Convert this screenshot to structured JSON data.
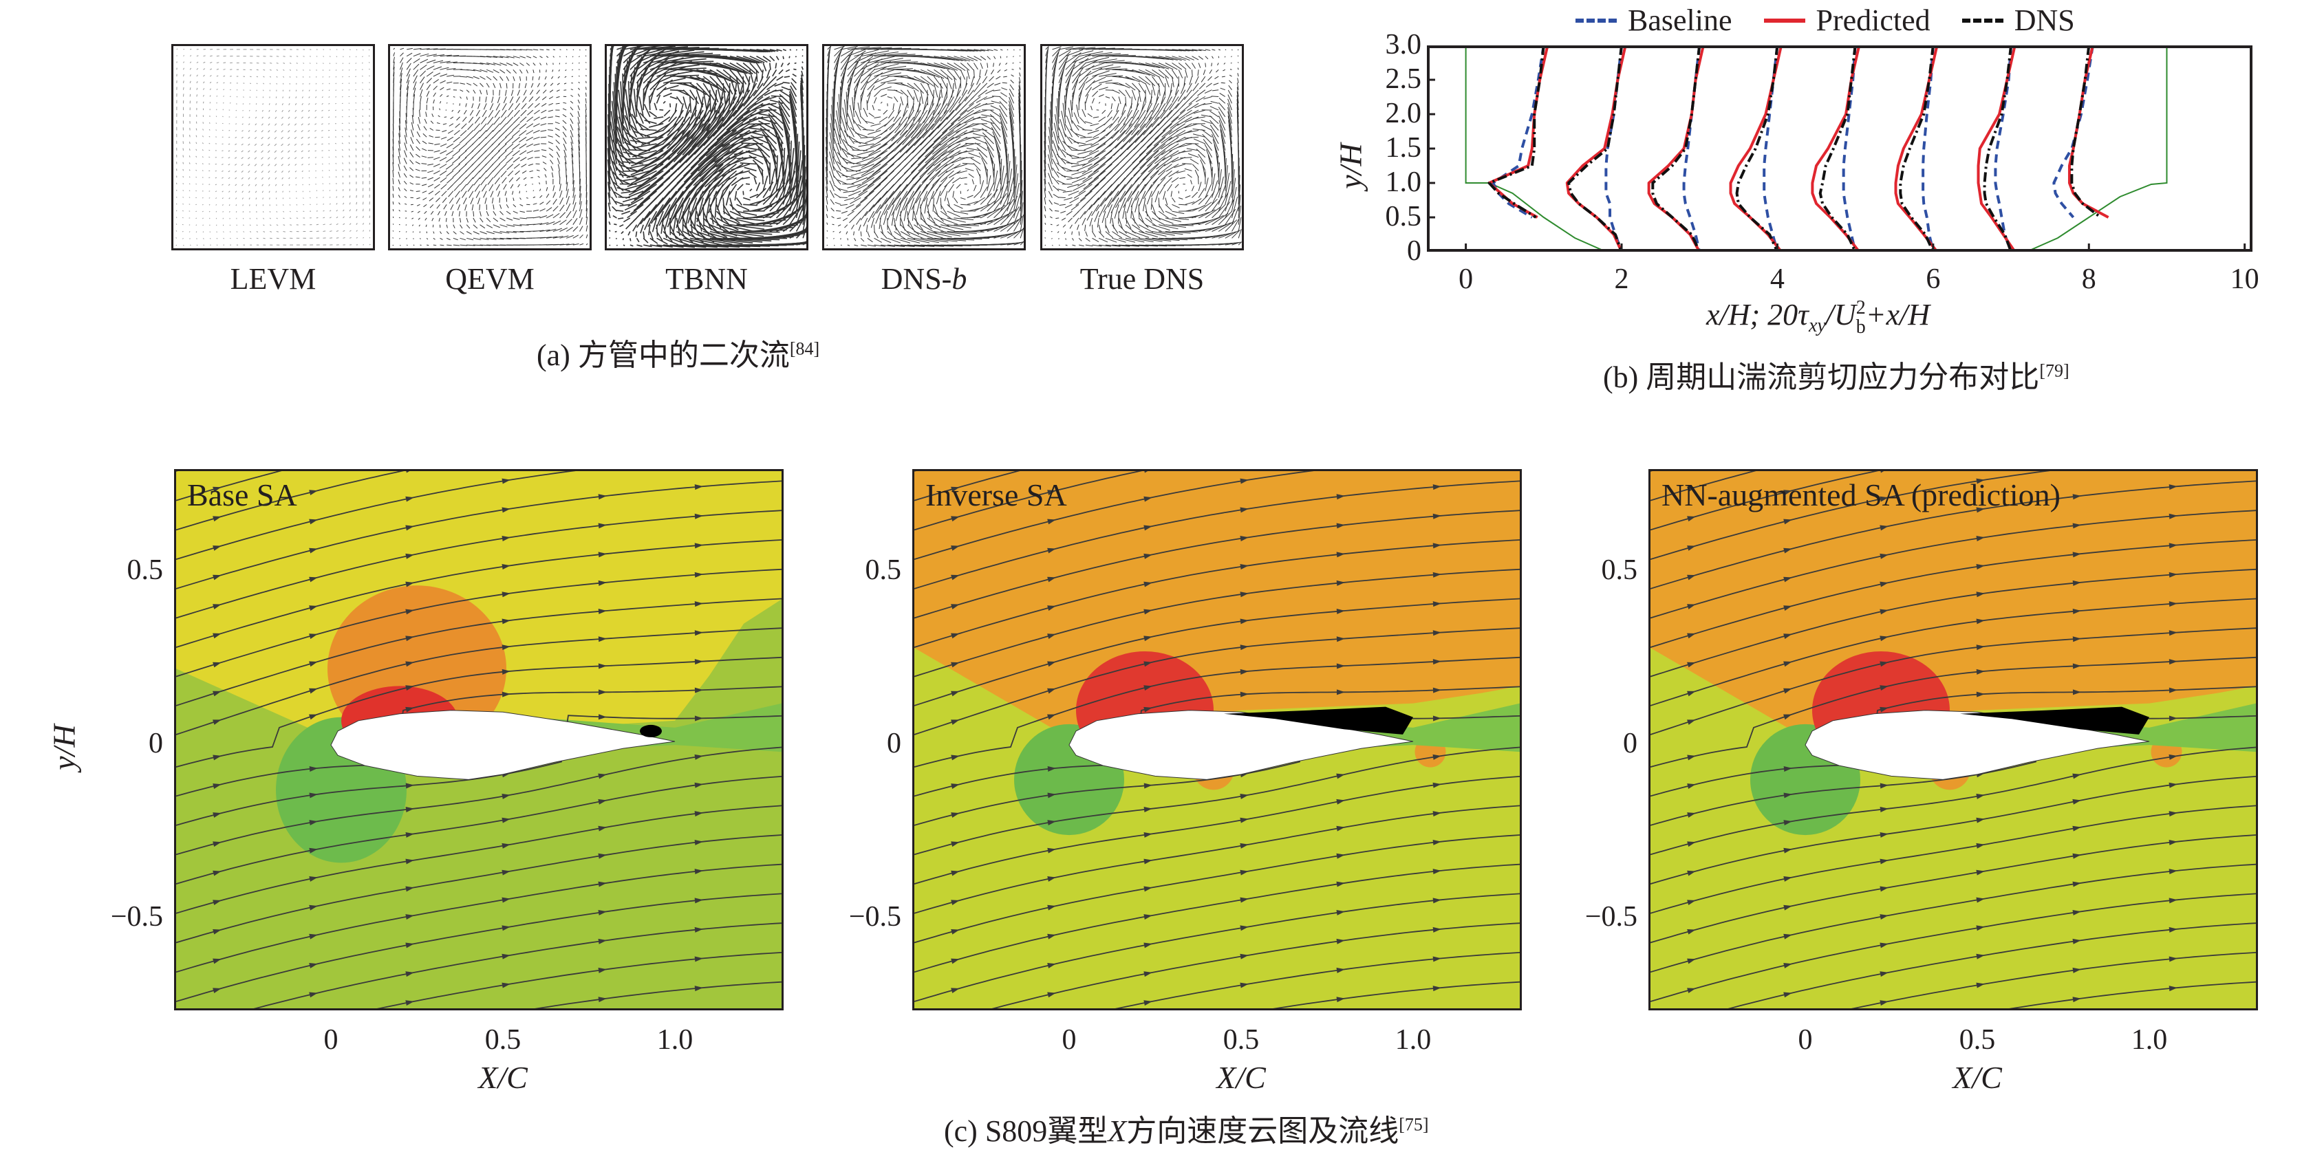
{
  "panel_a": {
    "labels": [
      "LEVM",
      "QEVM",
      "TBNN",
      "DNS-",
      "True DNS"
    ],
    "label_italic_suffix": {
      "3": "b"
    },
    "caption": "(a) 方管中的二次流",
    "caption_ref": "[84]"
  },
  "chart_data": {
    "type": "line",
    "title": "",
    "legend": {
      "placement": "top",
      "entries": [
        "Baseline",
        "Predicted",
        "DNS"
      ]
    },
    "xlabel_parts": {
      "a": "x/H; 20τ",
      "sub1": "xy",
      "b": "/U",
      "sub2": "b",
      "sup2": "2",
      "c": "+x/H"
    },
    "ylabel": "y/H",
    "xlim": [
      -0.5,
      10.1
    ],
    "ylim": [
      0,
      3
    ],
    "xticks": [
      "0",
      "2",
      "4",
      "6",
      "8",
      "10"
    ],
    "yticks": [
      "0",
      "0.5",
      "1.0",
      "1.5",
      "2.0",
      "2.5",
      "3.0"
    ],
    "colors": {
      "Baseline": "#2e4fa3",
      "Predicted": "#e0262f",
      "DNS": "#111111",
      "geometry": "#2e8b2e"
    },
    "geometry": {
      "hill": [
        [
          0,
          3
        ],
        [
          0,
          1
        ],
        [
          0.3,
          1
        ],
        [
          0.6,
          0.85
        ],
        [
          1.0,
          0.5
        ],
        [
          1.4,
          0.2
        ],
        [
          1.8,
          0
        ],
        [
          7.2,
          0
        ],
        [
          7.6,
          0.2
        ],
        [
          8.0,
          0.5
        ],
        [
          8.4,
          0.8
        ],
        [
          8.8,
          0.98
        ],
        [
          9,
          1
        ],
        [
          9,
          3
        ]
      ]
    },
    "y_samples": [
      3.0,
      2.5,
      2.0,
      1.5,
      1.25,
      1.0,
      0.85,
      0.7,
      0.5,
      0.25,
      0.0
    ],
    "series": [
      {
        "name": "Baseline",
        "profiles": [
          [
            1.0,
            0.93,
            0.85,
            0.72,
            0.68,
            0.35,
            0.42,
            0.55,
            0.85,
            null,
            null
          ],
          [
            2.0,
            1.95,
            1.9,
            1.82,
            1.8,
            1.8,
            1.8,
            1.85,
            1.85,
            1.92,
            2.0
          ],
          [
            3.0,
            2.95,
            2.9,
            2.85,
            2.82,
            2.8,
            2.8,
            2.82,
            2.88,
            2.95,
            3.0
          ],
          [
            4.0,
            3.95,
            3.9,
            3.85,
            3.83,
            3.83,
            3.83,
            3.85,
            3.88,
            3.94,
            4.0
          ],
          [
            5.0,
            4.97,
            4.92,
            4.87,
            4.85,
            4.85,
            4.85,
            4.87,
            4.9,
            4.95,
            5.0
          ],
          [
            6.0,
            5.97,
            5.92,
            5.88,
            5.87,
            5.87,
            5.87,
            5.88,
            5.92,
            5.95,
            6.0
          ],
          [
            7.0,
            6.97,
            6.9,
            6.82,
            6.8,
            6.8,
            6.82,
            6.85,
            6.88,
            6.92,
            7.0
          ],
          [
            8.05,
            7.98,
            7.9,
            7.78,
            7.65,
            7.55,
            7.57,
            7.65,
            7.8,
            null,
            null
          ]
        ]
      },
      {
        "name": "Predicted",
        "profiles": [
          [
            1.05,
            0.95,
            0.88,
            0.85,
            0.8,
            0.3,
            0.45,
            0.6,
            0.92,
            null,
            null
          ],
          [
            2.05,
            1.95,
            1.88,
            1.78,
            1.5,
            1.3,
            1.32,
            1.45,
            1.68,
            1.9,
            2.0
          ],
          [
            3.05,
            2.95,
            2.9,
            2.8,
            2.6,
            2.35,
            2.35,
            2.42,
            2.65,
            2.88,
            3.0
          ],
          [
            4.05,
            3.95,
            3.85,
            3.65,
            3.5,
            3.4,
            3.4,
            3.45,
            3.65,
            3.88,
            4.05
          ],
          [
            5.05,
            4.95,
            4.88,
            4.65,
            4.5,
            4.45,
            4.45,
            4.5,
            4.68,
            4.88,
            5.05
          ],
          [
            6.05,
            5.95,
            5.85,
            5.62,
            5.55,
            5.52,
            5.52,
            5.55,
            5.7,
            5.88,
            6.05
          ],
          [
            7.05,
            6.95,
            6.85,
            6.6,
            6.58,
            6.58,
            6.6,
            6.62,
            6.75,
            6.9,
            7.05
          ],
          [
            8.05,
            7.95,
            7.88,
            7.8,
            7.75,
            7.75,
            7.8,
            7.92,
            8.25,
            null,
            null
          ]
        ]
      },
      {
        "name": "DNS",
        "profiles": [
          [
            1.0,
            0.95,
            0.88,
            0.88,
            0.85,
            0.3,
            0.42,
            0.62,
            0.9,
            null,
            null
          ],
          [
            2.0,
            1.95,
            1.9,
            1.82,
            1.55,
            1.32,
            1.35,
            1.45,
            1.68,
            1.92,
            2.0
          ],
          [
            3.0,
            2.95,
            2.9,
            2.82,
            2.65,
            2.4,
            2.4,
            2.45,
            2.65,
            2.9,
            3.0
          ],
          [
            4.0,
            3.95,
            3.88,
            3.72,
            3.6,
            3.5,
            3.48,
            3.5,
            3.65,
            3.9,
            4.0
          ],
          [
            5.0,
            4.95,
            4.9,
            4.72,
            4.62,
            4.58,
            4.55,
            4.58,
            4.7,
            4.9,
            5.0
          ],
          [
            6.0,
            5.95,
            5.88,
            5.7,
            5.62,
            5.58,
            5.58,
            5.6,
            5.72,
            5.9,
            6.0
          ],
          [
            7.0,
            6.95,
            6.88,
            6.72,
            6.68,
            6.66,
            6.66,
            6.68,
            6.78,
            6.92,
            7.0
          ],
          [
            8.0,
            7.95,
            7.88,
            7.8,
            7.78,
            7.78,
            7.82,
            7.92,
            8.15,
            null,
            null
          ]
        ]
      }
    ],
    "grid": false,
    "caption": "(b) 周期山湍流剪切应力分布对比",
    "caption_ref": "[79]"
  },
  "panel_c": {
    "panels": [
      {
        "title": "Base SA",
        "colors": {
          "upper": "#dfd62e",
          "lower": "#a2c63c",
          "orange": "#e8902c",
          "red": "#e0332c",
          "green": "#6dbb4c",
          "wake": "#7fc24a"
        }
      },
      {
        "title": "Inverse SA",
        "colors": {
          "upper": "#e9a12c",
          "lower": "#c4d333",
          "orange": "#e89a2c",
          "red": "#e0392f",
          "green": "#6cba4b",
          "wake": "#7ec34a"
        }
      },
      {
        "title": "NN-augmented SA (prediction)",
        "colors": {
          "upper": "#e9a12c",
          "lower": "#c4d333",
          "orange": "#e89a2c",
          "red": "#e0392f",
          "green": "#6cba4b",
          "wake": "#7ec34a"
        }
      }
    ],
    "xlabel": "X/C",
    "ylabel": "y/H",
    "xticks": [
      "0",
      "0.5",
      "1.0"
    ],
    "yticks": [
      "0.5",
      "0",
      "−0.5"
    ],
    "xlim": [
      -0.45,
      1.31
    ],
    "ylim": [
      -0.76,
      0.79
    ],
    "caption_a": "(c) S809翼型",
    "caption_x": "X",
    "caption_b": "方向速度云图及流线",
    "caption_ref": "[75]"
  }
}
